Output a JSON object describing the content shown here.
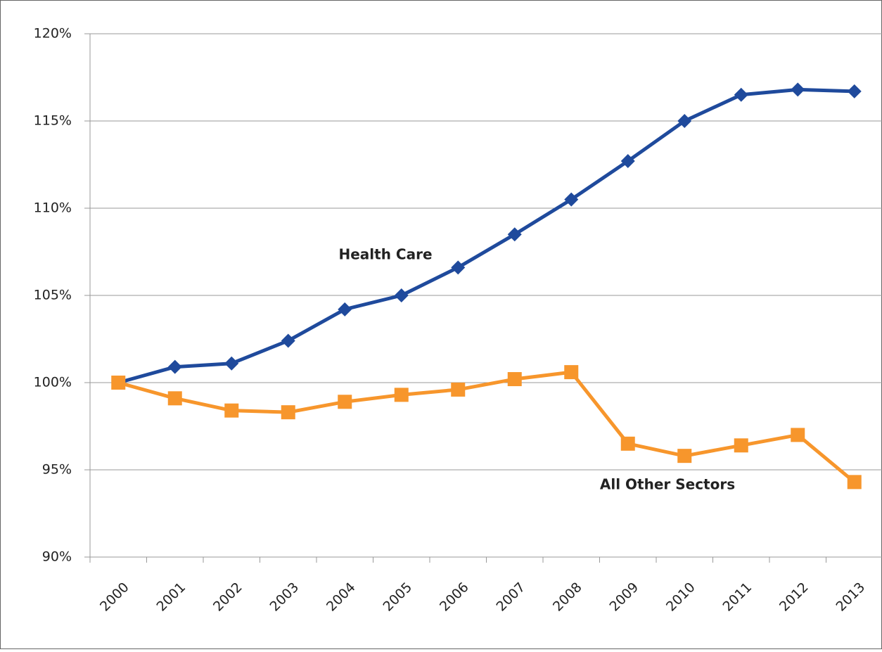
{
  "chart_data": {
    "type": "line",
    "categories": [
      "2000",
      "2001",
      "2002",
      "2003",
      "2004",
      "2005",
      "2006",
      "2007",
      "2008",
      "2009",
      "2010",
      "2011",
      "2012",
      "2013"
    ],
    "series": [
      {
        "name": "Health Care",
        "color": "#1f4a9c",
        "marker": "diamond",
        "values": [
          100,
          100.9,
          101.1,
          102.4,
          104.2,
          105.0,
          106.6,
          108.5,
          110.5,
          112.7,
          115.0,
          116.5,
          116.8,
          116.7
        ]
      },
      {
        "name": "All Other Sectors",
        "color": "#f7962c",
        "marker": "square",
        "values": [
          100,
          99.1,
          98.4,
          98.3,
          98.9,
          99.3,
          99.6,
          100.2,
          100.6,
          96.5,
          95.8,
          96.4,
          97.0,
          94.3
        ]
      }
    ],
    "ylim": [
      90,
      120
    ],
    "yticks": [
      {
        "value": 90,
        "label": "90%"
      },
      {
        "value": 95,
        "label": "95%"
      },
      {
        "value": 100,
        "label": "100%"
      },
      {
        "value": 105,
        "label": "105%"
      },
      {
        "value": 110,
        "label": "110%"
      },
      {
        "value": 115,
        "label": "115%"
      },
      {
        "value": 120,
        "label": "120%"
      }
    ],
    "grid": true
  }
}
